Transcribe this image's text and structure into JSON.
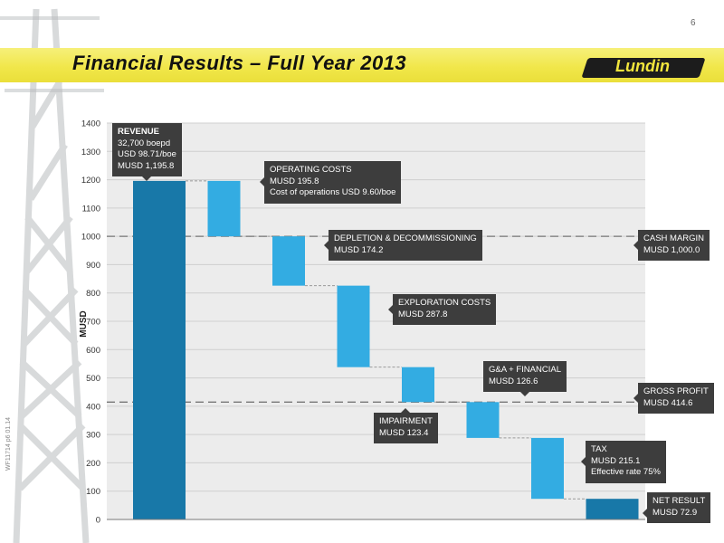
{
  "page": {
    "number": "6",
    "title": "Financial Results – Full Year 2013",
    "side_code": "WF11714 p6 01.14"
  },
  "logo": {
    "text": "Lundin"
  },
  "colors": {
    "dark_bar": "#1878a8",
    "light_bar": "#33ace2",
    "callout_bg": "#3d3d3d",
    "title_band": "#f1e74b"
  },
  "chart_data": {
    "type": "waterfall",
    "ylabel": "MUSD",
    "ylim": [
      0,
      1400
    ],
    "yticks": [
      "0",
      "100",
      "200",
      "300",
      "400",
      "500",
      "600",
      "700",
      "800",
      "900",
      "1000",
      "1100",
      "1200",
      "1300",
      "1400"
    ],
    "grid": true,
    "bars": [
      {
        "name": "Revenue",
        "start": 0,
        "end": 1195.8,
        "style": "total"
      },
      {
        "name": "Operating costs",
        "start": 1195.8,
        "end": 1000.0,
        "style": "change"
      },
      {
        "name": "Depletion & decommissioning",
        "start": 1000.0,
        "end": 825.8,
        "style": "change"
      },
      {
        "name": "Exploration costs",
        "start": 825.8,
        "end": 538.0,
        "style": "change"
      },
      {
        "name": "Impairment",
        "start": 538.0,
        "end": 414.6,
        "style": "change"
      },
      {
        "name": "G&A + financial",
        "start": 414.6,
        "end": 288.0,
        "style": "change"
      },
      {
        "name": "Tax",
        "start": 288.0,
        "end": 72.9,
        "style": "change"
      },
      {
        "name": "Net result",
        "start": 0,
        "end": 72.9,
        "style": "total"
      }
    ],
    "reference_lines": [
      {
        "label": "CASH MARGIN",
        "value": 1000.0
      },
      {
        "label": "GROSS PROFIT",
        "value": 414.6
      }
    ],
    "annotations": [
      {
        "lines": [
          "REVENUE",
          "32,700 boepd",
          "USD 98.71/boe",
          "MUSD 1,195.8"
        ]
      },
      {
        "lines": [
          "OPERATING COSTS",
          "MUSD 195.8",
          "Cost of operations USD 9.60/boe"
        ]
      },
      {
        "lines": [
          "DEPLETION & DECOMMISSIONING",
          "MUSD  174.2"
        ]
      },
      {
        "lines": [
          "EXPLORATION COSTS",
          "MUSD 287.8"
        ]
      },
      {
        "lines": [
          "IMPAIRMENT",
          "MUSD  123.4"
        ]
      },
      {
        "lines": [
          "G&A + FINANCIAL",
          "MUSD 126.6"
        ]
      },
      {
        "lines": [
          "TAX",
          "MUSD 215.1",
          "Effective rate 75%"
        ]
      },
      {
        "lines": [
          "NET RESULT",
          "MUSD 72.9"
        ]
      },
      {
        "lines": [
          "CASH MARGIN",
          "MUSD  1,000.0"
        ]
      },
      {
        "lines": [
          "GROSS PROFIT",
          "MUSD 414.6"
        ]
      }
    ]
  }
}
